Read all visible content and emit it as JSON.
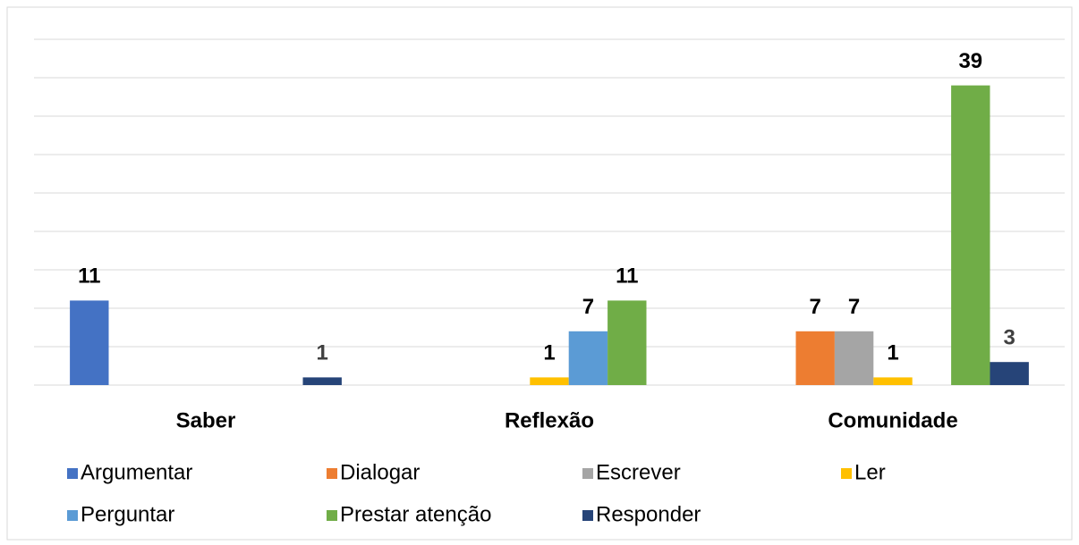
{
  "chart_data": {
    "type": "bar",
    "categories": [
      "Saber",
      "Reflexão",
      "Comunidade"
    ],
    "series": [
      {
        "name": "Argumentar",
        "color": "#4472c4",
        "label_color": "#000000",
        "values": [
          11,
          null,
          null
        ]
      },
      {
        "name": "Dialogar",
        "color": "#ed7d31",
        "label_color": "#000000",
        "values": [
          null,
          null,
          7
        ]
      },
      {
        "name": "Escrever",
        "color": "#a5a5a5",
        "label_color": "#000000",
        "values": [
          null,
          null,
          7
        ]
      },
      {
        "name": "Ler",
        "color": "#ffc000",
        "label_color": "#000000",
        "values": [
          null,
          1,
          1
        ]
      },
      {
        "name": "Perguntar",
        "color": "#5b9bd5",
        "label_color": "#000000",
        "values": [
          null,
          7,
          null
        ]
      },
      {
        "name": "Prestar atenção",
        "color": "#70ad47",
        "label_color": "#000000",
        "values": [
          null,
          11,
          39
        ]
      },
      {
        "name": "Responder",
        "color": "#264478",
        "label_color": "#404040",
        "values": [
          1,
          null,
          3
        ]
      }
    ],
    "ylim": [
      0,
      45
    ],
    "yticks": [
      0,
      5,
      10,
      15,
      20,
      25,
      30,
      35,
      40,
      45
    ],
    "grid": true
  }
}
